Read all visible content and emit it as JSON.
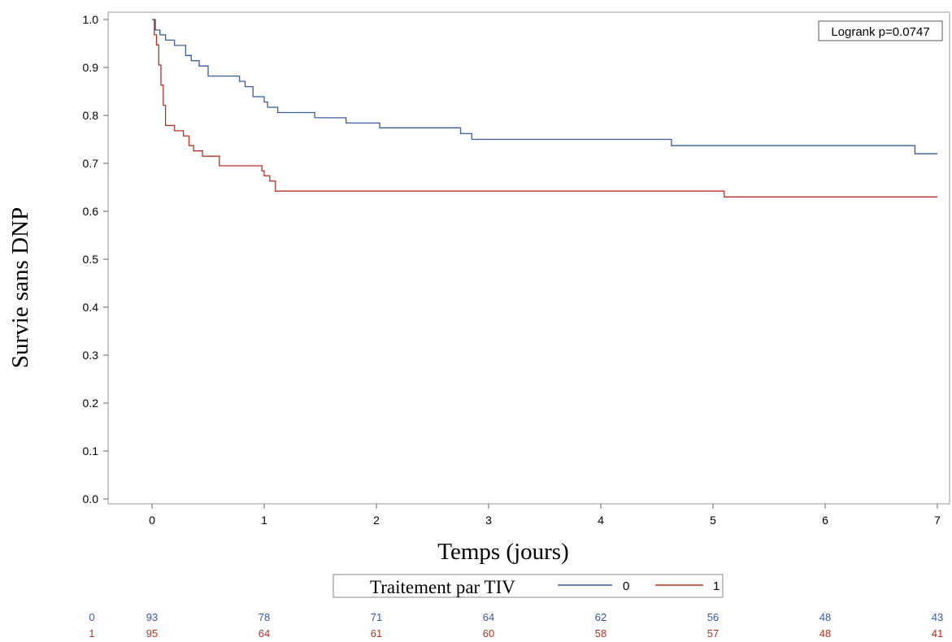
{
  "chart_data": {
    "type": "line",
    "xlabel": "Temps (jours)",
    "ylabel": "Survie sans DNP",
    "xlim": [
      0,
      7
    ],
    "ylim": [
      0.0,
      1.0
    ],
    "x_ticks": [
      "0",
      "1",
      "2",
      "3",
      "4",
      "5",
      "6",
      "7"
    ],
    "y_ticks": [
      "0.0",
      "0.1",
      "0.2",
      "0.3",
      "0.4",
      "0.5",
      "0.6",
      "0.7",
      "0.8",
      "0.9",
      "1.0"
    ],
    "grid": false,
    "step": true,
    "annotation": "Logrank p=0.0747",
    "legend": {
      "title": "Traitement par TIV",
      "placement": "bottom-center"
    },
    "colors": {
      "0": "#3a5ba0",
      "1": "#b83224"
    },
    "series": [
      {
        "name": "0",
        "color": "#3a5ba0",
        "x": [
          0,
          0.03,
          0.07,
          0.12,
          0.2,
          0.3,
          0.35,
          0.42,
          0.5,
          0.6,
          0.78,
          0.83,
          0.9,
          0.93,
          1.0,
          1.03,
          1.12,
          1.45,
          1.73,
          2.03,
          2.75,
          2.85,
          4.63,
          6.8,
          7.0
        ],
        "values": [
          1.0,
          0.978,
          0.968,
          0.957,
          0.946,
          0.925,
          0.914,
          0.903,
          0.882,
          0.882,
          0.871,
          0.86,
          0.839,
          0.839,
          0.828,
          0.817,
          0.806,
          0.795,
          0.784,
          0.774,
          0.762,
          0.75,
          0.737,
          0.72,
          0.72
        ]
      },
      {
        "name": "1",
        "color": "#b83224",
        "x": [
          0,
          0.02,
          0.04,
          0.06,
          0.08,
          0.1,
          0.12,
          0.2,
          0.28,
          0.33,
          0.37,
          0.45,
          0.6,
          0.98,
          1.0,
          1.05,
          1.1,
          5.1,
          7.0
        ],
        "values": [
          1.0,
          0.968,
          0.947,
          0.905,
          0.863,
          0.821,
          0.779,
          0.768,
          0.757,
          0.737,
          0.726,
          0.715,
          0.695,
          0.684,
          0.674,
          0.663,
          0.642,
          0.63,
          0.63
        ]
      }
    ],
    "risk_table": {
      "times": [
        0,
        1,
        2,
        3,
        4,
        5,
        6,
        7
      ],
      "rows": [
        {
          "label": "0",
          "color": "#3a5ba0",
          "values": [
            "93",
            "78",
            "71",
            "64",
            "62",
            "56",
            "48",
            "43"
          ]
        },
        {
          "label": "1",
          "color": "#b83224",
          "values": [
            "95",
            "64",
            "61",
            "60",
            "58",
            "57",
            "48",
            "41"
          ]
        }
      ]
    }
  }
}
